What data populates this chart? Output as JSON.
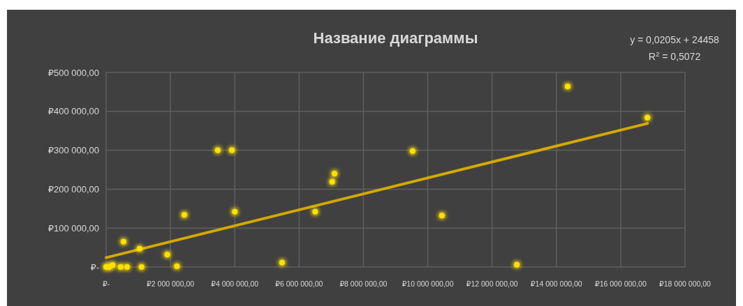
{
  "chart_data": {
    "type": "scatter",
    "title": "Название диаграммы",
    "annotations": [
      "y = 0,0205x + 24458",
      "R$^{2}$ = 0,5072"
    ],
    "series": [
      {
        "color": "#ffe100",
        "marker": "circle",
        "x": [
          0,
          100000,
          200000,
          450000,
          650000,
          540000,
          1100000,
          1040000,
          1900000,
          2200000,
          2430000,
          3470000,
          3910000,
          4000000,
          5470000,
          6500000,
          7030000,
          7100000,
          9530000,
          10440000,
          12770000,
          14350000,
          16830000
        ],
        "values": [
          0,
          0,
          5000,
          0,
          0,
          65000,
          0,
          47000,
          32000,
          2000,
          134000,
          300000,
          300000,
          142000,
          11000,
          142000,
          219000,
          240000,
          298000,
          132000,
          6000,
          464000,
          384000
        ]
      },
      {
        "type": "line",
        "color": "#d4a800",
        "line_style": "solid",
        "x": [
          0,
          16830000
        ],
        "values": [
          24000,
          369000
        ]
      }
    ],
    "xlim": [
      0,
      18000000
    ],
    "xticks": [
      {
        "value": 0,
        "label": "₽-"
      },
      {
        "value": 2000000,
        "label": "₽2 000 000,00"
      },
      {
        "value": 4000000,
        "label": "₽4 000 000,00"
      },
      {
        "value": 6000000,
        "label": "₽6 000 000,00"
      },
      {
        "value": 8000000,
        "label": "₽8 000 000,00"
      },
      {
        "value": 10000000,
        "label": "₽10 000 000,00"
      },
      {
        "value": 12000000,
        "label": "₽12 000 000,00"
      },
      {
        "value": 14000000,
        "label": "₽14 000 000,00"
      },
      {
        "value": 16000000,
        "label": "₽16 000 000,00"
      },
      {
        "value": 18000000,
        "label": "₽18 000 000,00"
      }
    ],
    "ylim": [
      0,
      500000
    ],
    "yticks": [
      {
        "value": 0,
        "label": "₽-"
      },
      {
        "value": 100000,
        "label": "₽100 000,00"
      },
      {
        "value": 200000,
        "label": "₽200 000,00"
      },
      {
        "value": 300000,
        "label": "₽300 000,00"
      },
      {
        "value": 400000,
        "label": "₽400 000,00"
      },
      {
        "value": 500000,
        "label": "₽500 000,00"
      }
    ],
    "grid": true
  }
}
